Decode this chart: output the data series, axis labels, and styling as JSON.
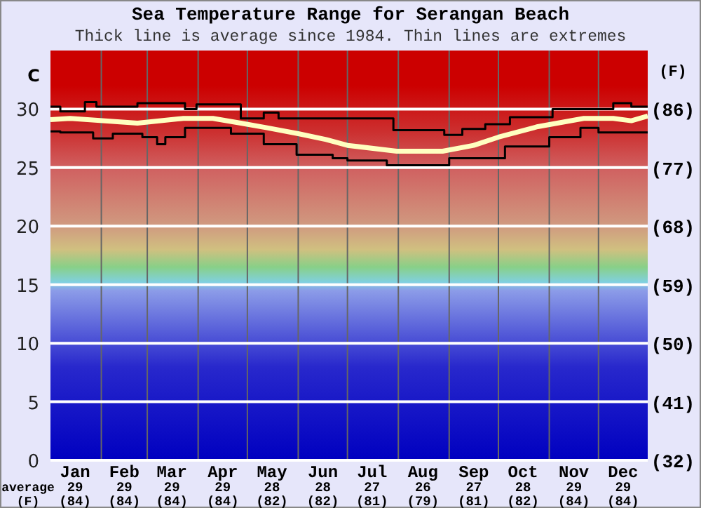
{
  "chart_data": {
    "type": "line",
    "title": "Sea Temperature Range for Serangan Beach",
    "subtitle": "Thick line is average since 1984. Thin lines are extremes",
    "ylabel": "C",
    "y2label": "(F)",
    "xlim": [
      "--01-01",
      "--12-31"
    ],
    "xticks": [
      {
        "value": "--02-01",
        "label": null
      },
      {
        "value": "--03-01",
        "label": null
      },
      {
        "value": "--04-01",
        "label": null
      },
      {
        "value": "--05-01",
        "label": null
      },
      {
        "value": "--06-01",
        "label": null
      },
      {
        "value": "--07-01",
        "label": null
      },
      {
        "value": "--08-01",
        "label": null
      },
      {
        "value": "--09-01",
        "label": null
      },
      {
        "value": "--10-01",
        "label": null
      },
      {
        "value": "--11-01",
        "label": null
      },
      {
        "value": "--12-01",
        "label": null
      },
      {
        "value": "--01-16",
        "label": "Jan\n29\n(84)"
      },
      {
        "value": "--02-15",
        "label": "Feb\n29\n(84)"
      },
      {
        "value": "--03-16",
        "label": "Mar\n29\n(84)"
      },
      {
        "value": "--04-16",
        "label": "Apr\n29\n(84)"
      },
      {
        "value": "--05-16",
        "label": "May\n28\n(82)"
      },
      {
        "value": "--06-16",
        "label": "Jun\n28\n(82)"
      },
      {
        "value": "--07-16",
        "label": "Jul\n27\n(81)"
      },
      {
        "value": "--08-16",
        "label": "Aug\n26\n(79)"
      },
      {
        "value": "--09-16",
        "label": "Sep\n27\n(81)"
      },
      {
        "value": "--10-16",
        "label": "Oct\n28\n(82)"
      },
      {
        "value": "--11-16",
        "label": "Nov\n29\n(84)"
      },
      {
        "value": "--12-16",
        "label": "Dec\n29\n(84)"
      }
    ],
    "ylim": [
      0,
      35
    ],
    "yticks": [
      0,
      5,
      10,
      15,
      20,
      25,
      30
    ],
    "y2lim": [
      32,
      95
    ],
    "y2ticks": [
      {
        "value": 32,
        "label": "(32)"
      },
      {
        "value": 41,
        "label": "(41)"
      },
      {
        "value": 50,
        "label": "(50)"
      },
      {
        "value": 59,
        "label": "(59)"
      },
      {
        "value": 68,
        "label": "(68)"
      },
      {
        "value": 77,
        "label": "(77)"
      },
      {
        "value": 86,
        "label": "(86)"
      }
    ],
    "grid": true,
    "annotations": [
      "average\n(F)"
    ],
    "series": [
      {
        "type": "step",
        "color": "#000000",
        "x": [
          "--01-01",
          "--01-07",
          "--01-22",
          "--01-29",
          "--02-23",
          "--03-24",
          "--03-31",
          "--04-27",
          "--05-11",
          "--05-20",
          "--07-29",
          "--08-29",
          "--09-09",
          "--09-23",
          "--10-08",
          "--11-03",
          "--12-10",
          "--12-21",
          "--12-31"
        ],
        "values": [
          30.2,
          29.8,
          30.6,
          30.2,
          30.5,
          30.0,
          30.4,
          29.2,
          29.7,
          29.2,
          28.2,
          27.8,
          28.3,
          28.7,
          29.3,
          30.0,
          30.5,
          30.2,
          30.2
        ]
      },
      {
        "type": "step",
        "color": "#000000",
        "x": [
          "--01-01",
          "--01-07",
          "--01-27",
          "--02-08",
          "--02-26",
          "--03-07",
          "--03-12",
          "--03-24",
          "--04-21",
          "--05-11",
          "--05-31",
          "--06-22",
          "--07-01",
          "--07-25",
          "--09-01",
          "--10-05",
          "--11-01",
          "--11-20",
          "--12-01",
          "--12-31"
        ],
        "values": [
          28.1,
          28.0,
          27.5,
          27.9,
          27.6,
          27.0,
          27.6,
          28.4,
          27.9,
          27.0,
          26.1,
          25.8,
          25.6,
          25.2,
          25.8,
          26.8,
          27.6,
          28.4,
          28.0,
          28.0
        ]
      },
      {
        "type": "line",
        "color": "#ffffc0",
        "x": [
          "--01-01",
          "--01-13",
          "--02-23",
          "--03-23",
          "--04-10",
          "--04-27",
          "--05-13",
          "--06-01",
          "--06-18",
          "--07-01",
          "--07-31",
          "--08-28",
          "--09-16",
          "--10-01",
          "--10-25",
          "--11-22",
          "--12-10",
          "--12-21",
          "--12-31"
        ],
        "values": [
          29.1,
          29.2,
          28.8,
          29.2,
          29.2,
          28.8,
          28.4,
          27.9,
          27.4,
          26.9,
          26.4,
          26.4,
          26.9,
          27.6,
          28.5,
          29.2,
          29.2,
          29.0,
          29.4
        ]
      }
    ]
  }
}
